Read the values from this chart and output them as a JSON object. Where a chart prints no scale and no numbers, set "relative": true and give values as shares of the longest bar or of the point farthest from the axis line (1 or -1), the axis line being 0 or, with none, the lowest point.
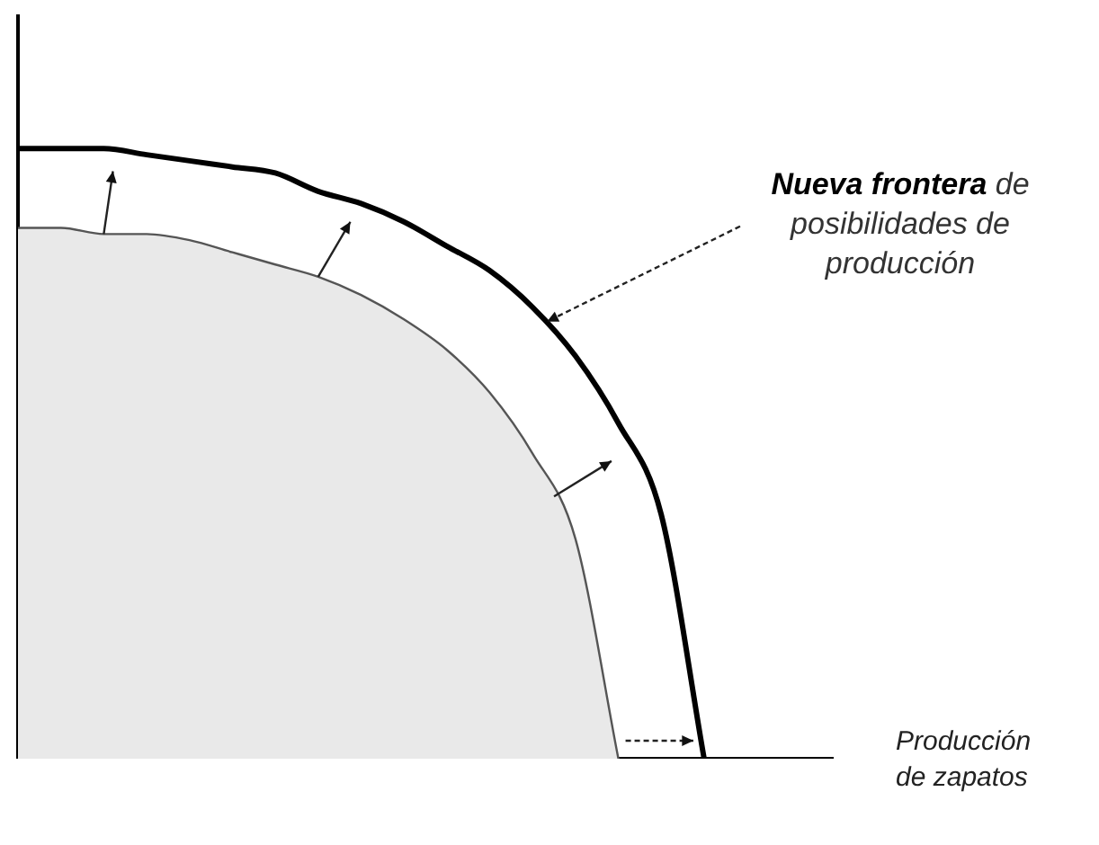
{
  "chart_data": {
    "type": "area",
    "relative": true,
    "xlabel": "Producción de zapatos",
    "categories": [
      null,
      null,
      null,
      null,
      null,
      null,
      null,
      null,
      null,
      null,
      null,
      null,
      null,
      null,
      null,
      null,
      null,
      null,
      null,
      null
    ],
    "series": [
      {
        "type": "area",
        "color": "#555555",
        "values": [
          0.87,
          0.87,
          0.86,
          0.86,
          0.85,
          0.83,
          0.81,
          0.79,
          0.76,
          0.72,
          0.67,
          0.6,
          0.5,
          0.36,
          0,
          null,
          null,
          null,
          null,
          null
        ]
      },
      {
        "type": "line",
        "color": "#000000",
        "values": [
          1,
          1,
          1,
          0.99,
          0.98,
          0.97,
          0.96,
          0.93,
          0.91,
          0.88,
          0.84,
          0.8,
          0.74,
          0.66,
          0.55,
          0.4,
          0,
          null,
          null,
          null
        ]
      }
    ],
    "annotations": [
      "Nueva frontera",
      "de posibilidades de producción"
    ],
    "grid": false,
    "legend": false
  }
}
